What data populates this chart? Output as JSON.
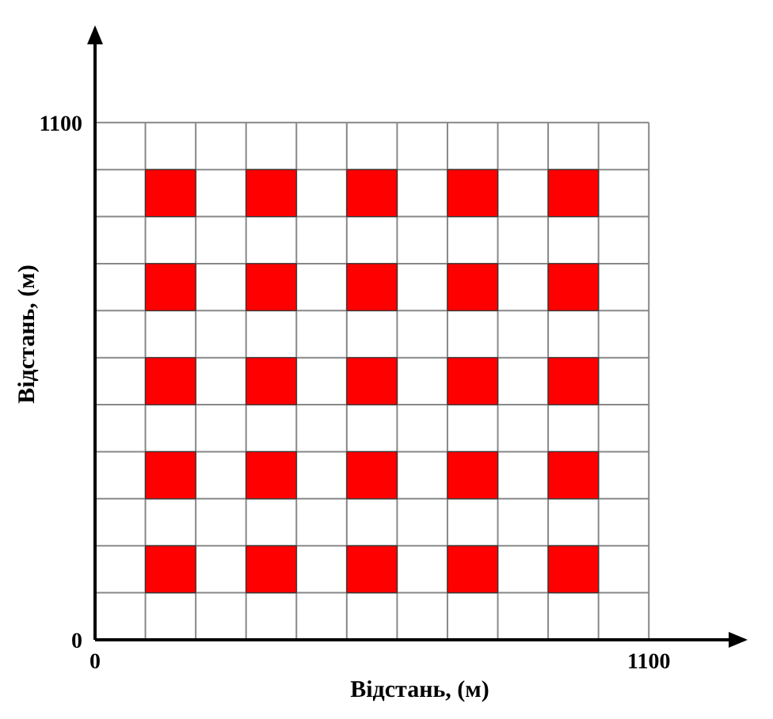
{
  "chart_data": {
    "type": "scatter",
    "xlabel": "Відстань, (м)",
    "ylabel": "Відстань, (м)",
    "marker": "square",
    "grid": true,
    "xlim": [
      0,
      1290
    ],
    "ylim": [
      0,
      1300
    ],
    "xticks": [
      0,
      {
        "value": 100,
        "label": null
      },
      {
        "value": 200,
        "label": null
      },
      {
        "value": 300,
        "label": null
      },
      {
        "value": 400,
        "label": null
      },
      {
        "value": 500,
        "label": null
      },
      {
        "value": 600,
        "label": null
      },
      {
        "value": 700,
        "label": null
      },
      {
        "value": 800,
        "label": null
      },
      {
        "value": 900,
        "label": null
      },
      {
        "value": 1000,
        "label": null
      },
      1100
    ],
    "yticks": [
      0,
      {
        "value": 100,
        "label": null
      },
      {
        "value": 200,
        "label": null
      },
      {
        "value": 300,
        "label": null
      },
      {
        "value": 400,
        "label": null
      },
      {
        "value": 500,
        "label": null
      },
      {
        "value": 600,
        "label": null
      },
      {
        "value": 700,
        "label": null
      },
      {
        "value": 800,
        "label": null
      },
      {
        "value": 900,
        "label": null
      },
      {
        "value": 1000,
        "label": null
      },
      1100
    ],
    "x": [
      150,
      350,
      550,
      750,
      950,
      150,
      350,
      550,
      750,
      950,
      150,
      350,
      550,
      750,
      950,
      150,
      350,
      550,
      750,
      950,
      150,
      350,
      550,
      750,
      950
    ],
    "series": [
      {
        "color": "#ff0000",
        "values": [
          950,
          950,
          950,
          950,
          950,
          750,
          750,
          750,
          750,
          750,
          550,
          550,
          550,
          550,
          550,
          350,
          350,
          350,
          350,
          350,
          150,
          150,
          150,
          150,
          150
        ]
      }
    ]
  }
}
